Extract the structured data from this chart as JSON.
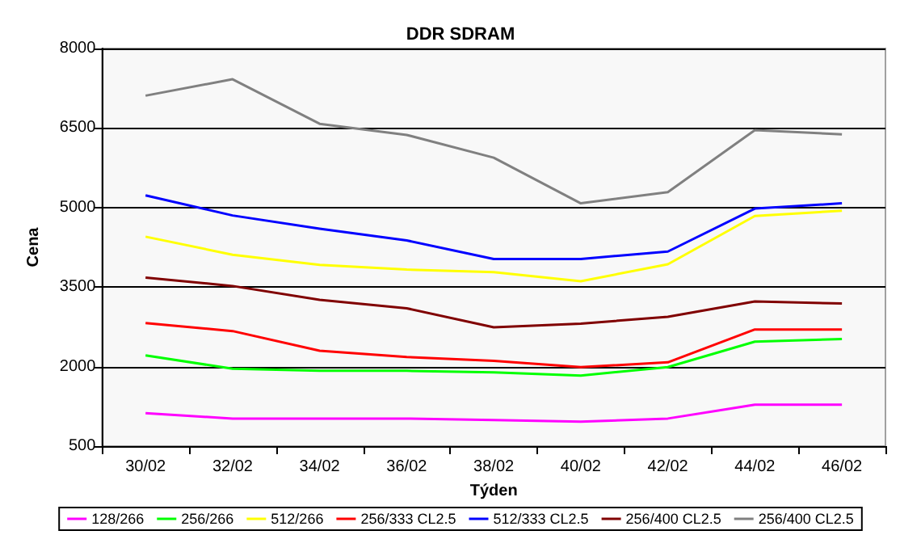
{
  "chart_data": {
    "type": "line",
    "title": "DDR SDRAM",
    "xlabel": "Týden",
    "ylabel": "Cena",
    "categories": [
      "30/02",
      "32/02",
      "34/02",
      "36/02",
      "38/02",
      "40/02",
      "42/02",
      "44/02",
      "46/02"
    ],
    "series": [
      {
        "name": "128/266",
        "color": "#ff00ff",
        "values": [
          1120,
          1020,
          1020,
          1020,
          990,
          960,
          1020,
          1280,
          1280
        ]
      },
      {
        "name": "256/266",
        "color": "#00ff00",
        "values": [
          2210,
          1960,
          1920,
          1920,
          1890,
          1830,
          1990,
          2470,
          2520
        ]
      },
      {
        "name": "512/266",
        "color": "#ffff00",
        "values": [
          4450,
          4110,
          3920,
          3830,
          3780,
          3610,
          3930,
          4840,
          4940
        ]
      },
      {
        "name": "256/333 CL2.5",
        "color": "#ff0000",
        "values": [
          2820,
          2670,
          2300,
          2180,
          2110,
          1990,
          2080,
          2700,
          2700
        ]
      },
      {
        "name": "512/333 CL2.5",
        "color": "#0000ff",
        "values": [
          5230,
          4850,
          4600,
          4380,
          4030,
          4030,
          4170,
          4980,
          5080
        ]
      },
      {
        "name": "256/400 CL2.5",
        "color": "#800000",
        "values": [
          3680,
          3520,
          3260,
          3100,
          2740,
          2810,
          2940,
          3230,
          3190
        ]
      },
      {
        "name": "256/400 CL2.5",
        "color": "#808080",
        "values": [
          7110,
          7420,
          6580,
          6370,
          5940,
          5080,
          5290,
          6460,
          6380
        ]
      }
    ],
    "ylim": [
      500,
      8000
    ],
    "yticks": [
      500,
      2000,
      3500,
      5000,
      6500,
      8000
    ],
    "grid": "y",
    "legend": "bottom",
    "marker": "none",
    "line_style": "solid"
  }
}
